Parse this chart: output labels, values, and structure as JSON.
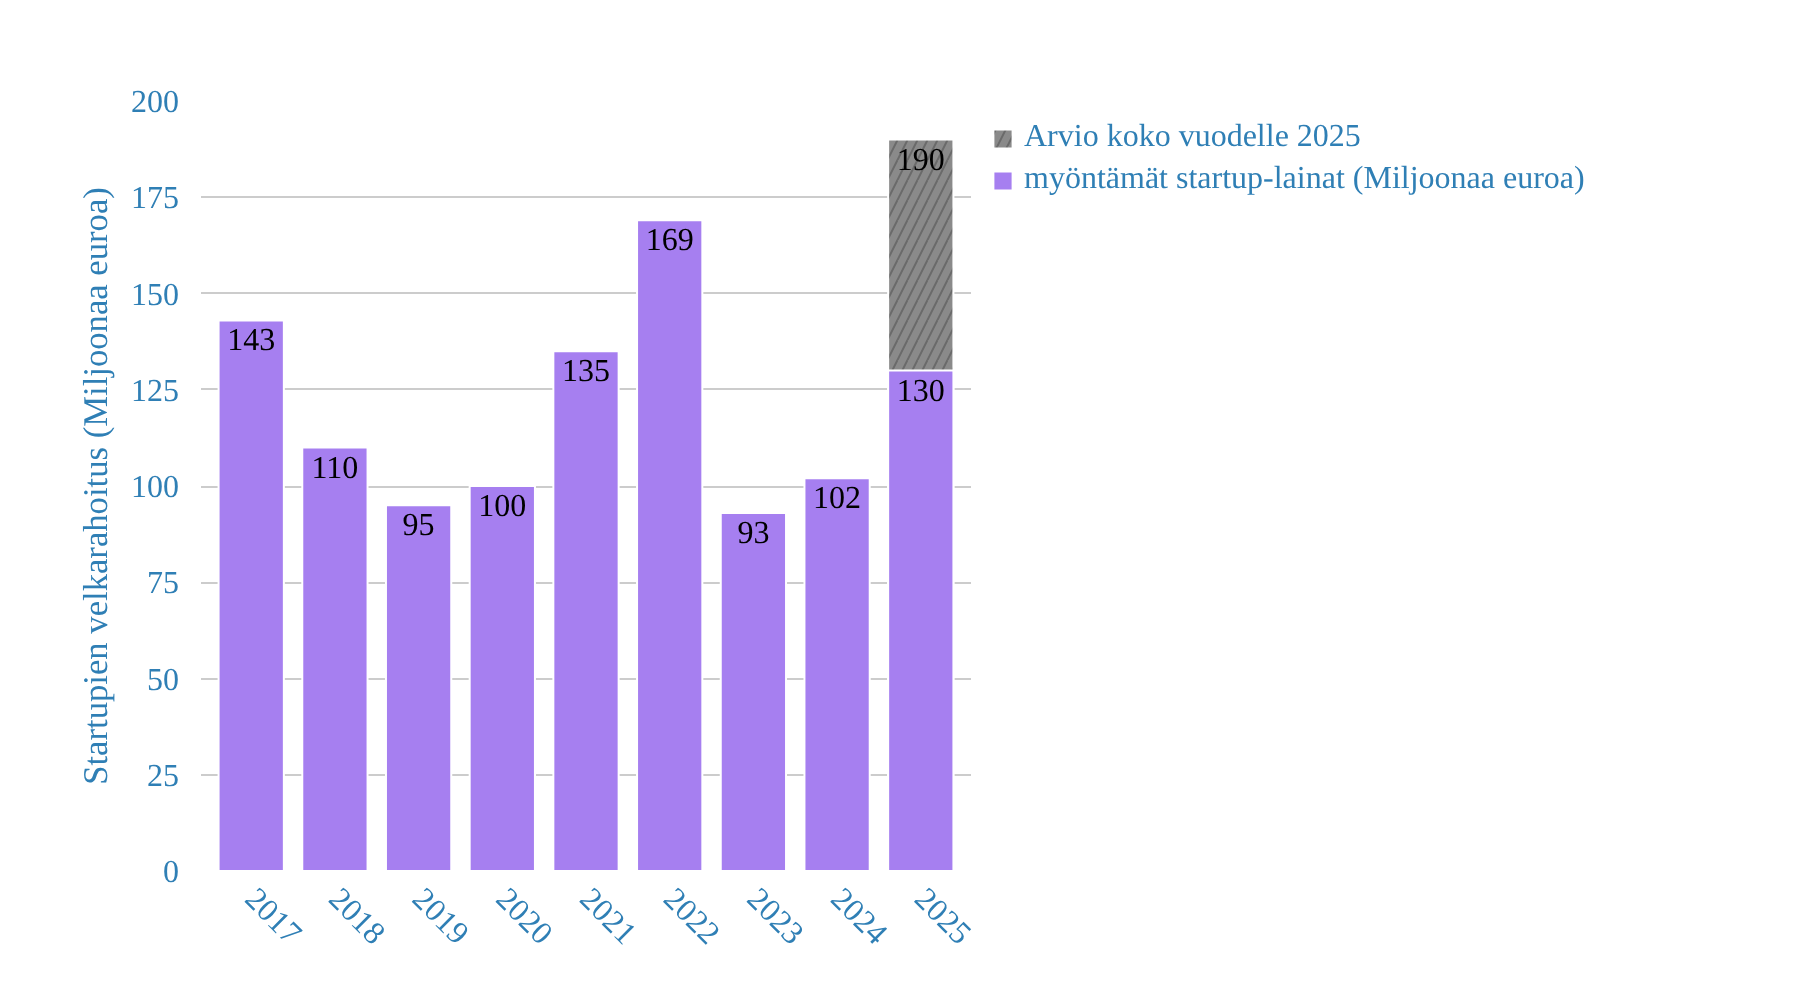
{
  "chart_data": {
    "type": "bar",
    "ylabel": "Startupien velkarahoitus (Miljoonaa euroa)",
    "categories": [
      "2017",
      "2018",
      "2019",
      "2020",
      "2021",
      "2022",
      "2023",
      "2024",
      "2025"
    ],
    "series": [
      {
        "name": "Arvio koko vuodelle 2025",
        "color": "#8a8a8a",
        "values": [
          null,
          null,
          null,
          null,
          null,
          null,
          null,
          null,
          190
        ]
      },
      {
        "name": "myöntämät startup-lainat (Miljoonaa euroa)",
        "color": "#a67ff0",
        "values": [
          143,
          110,
          95,
          100,
          135,
          169,
          93,
          102,
          130
        ]
      }
    ],
    "data_labels": true,
    "ylim": [
      0,
      200
    ],
    "yticks": [
      0,
      25,
      50,
      75,
      100,
      125,
      150,
      175,
      200
    ],
    "grid": "y",
    "legend": "top right"
  }
}
